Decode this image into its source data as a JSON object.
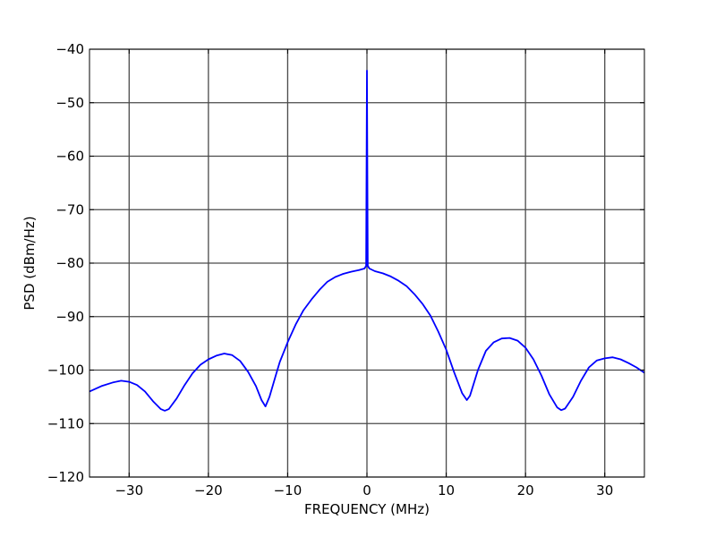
{
  "chart_data": {
    "type": "line",
    "title": "",
    "xlabel": "FREQUENCY (MHz)",
    "ylabel": "PSD (dBm/Hz)",
    "xlim": [
      -35,
      35
    ],
    "ylim": [
      -120,
      -40
    ],
    "xticks": [
      -30,
      -20,
      -10,
      0,
      10,
      20,
      30
    ],
    "yticks": [
      -40,
      -50,
      -60,
      -70,
      -80,
      -90,
      -100,
      -110,
      -120
    ],
    "xtick_labels": [
      "−30",
      "−20",
      "−10",
      "0",
      "10",
      "20",
      "30"
    ],
    "ytick_labels": [
      "−40",
      "−50",
      "−60",
      "−70",
      "−80",
      "−90",
      "−100",
      "−110",
      "−120"
    ],
    "grid": true,
    "series": [
      {
        "color": "#0000ff",
        "x": [
          -35,
          -33.5,
          -32,
          -31,
          -30,
          -29,
          -28,
          -27,
          -26,
          -25.5,
          -25,
          -24,
          -23,
          -22,
          -21,
          -20,
          -19,
          -18,
          -17,
          -16,
          -15,
          -14,
          -13.3,
          -12.8,
          -12.3,
          -11.5,
          -11,
          -10,
          -9,
          -8,
          -7,
          -6,
          -5,
          -4,
          -3,
          -2,
          -1,
          -0.3,
          -0.1,
          0,
          0.1,
          0.3,
          1,
          2,
          3,
          4,
          5,
          6,
          7,
          8,
          9,
          10,
          11,
          12,
          12.6,
          13,
          14,
          15,
          16,
          17,
          18,
          19,
          20,
          21,
          22,
          23,
          24,
          24.5,
          25,
          26,
          27,
          28,
          29,
          30,
          31,
          32,
          33,
          34,
          35
        ],
        "y": [
          -104,
          -103,
          -102.3,
          -102,
          -102.2,
          -102.8,
          -104,
          -105.8,
          -107.3,
          -107.6,
          -107.3,
          -105.3,
          -102.8,
          -100.6,
          -99,
          -98,
          -97.3,
          -96.9,
          -97.2,
          -98.3,
          -100.3,
          -103,
          -105.6,
          -106.8,
          -105,
          -101,
          -98.5,
          -94.8,
          -91.5,
          -88.8,
          -86.8,
          -85,
          -83.5,
          -82.6,
          -82,
          -81.6,
          -81.3,
          -81,
          -80.5,
          -44,
          -80.5,
          -81,
          -81.5,
          -81.9,
          -82.5,
          -83.3,
          -84.3,
          -85.8,
          -87.6,
          -89.8,
          -92.8,
          -96.2,
          -100.4,
          -104.3,
          -105.6,
          -104.8,
          -100,
          -96.4,
          -94.8,
          -94.1,
          -94,
          -94.5,
          -95.8,
          -98,
          -101,
          -104.5,
          -107,
          -107.5,
          -107.2,
          -105,
          -102,
          -99.5,
          -98.2,
          -97.8,
          -97.6,
          -98,
          -98.7,
          -99.5,
          -100.5
        ]
      }
    ]
  }
}
